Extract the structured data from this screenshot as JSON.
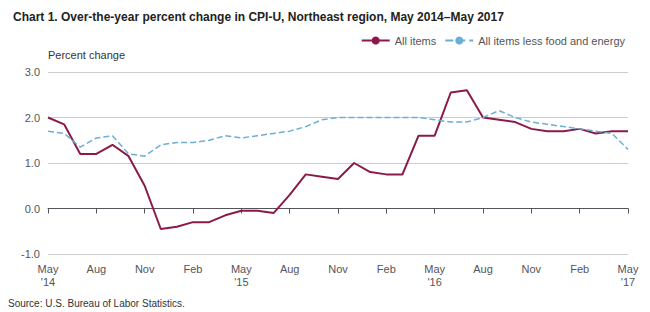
{
  "chart_data": {
    "type": "line",
    "title": "Chart 1. Over-the-year percent change in CPI-U, Northeast region, May 2014–May 2017",
    "ylabel": "Percent change",
    "annotations": [
      "Source: U.S. Bureau of Labor Statistics."
    ],
    "categories": [
      "May\n'14",
      null,
      null,
      "Aug",
      null,
      null,
      "Nov",
      null,
      null,
      "Feb",
      null,
      null,
      "May\n'15",
      null,
      null,
      "Aug",
      null,
      null,
      "Nov",
      null,
      null,
      "Feb",
      null,
      null,
      "May\n'16",
      null,
      null,
      "Aug",
      null,
      null,
      "Nov",
      null,
      null,
      "Feb",
      null,
      null,
      "May\n'17"
    ],
    "series": [
      {
        "name": "All items",
        "color": "#8B1A4A",
        "line_style": "solid",
        "values": [
          2.0,
          1.85,
          1.2,
          1.2,
          1.4,
          1.15,
          0.5,
          -0.45,
          -0.4,
          -0.3,
          -0.3,
          -0.15,
          -0.05,
          -0.05,
          -0.1,
          0.3,
          0.75,
          0.7,
          0.65,
          1.0,
          0.8,
          0.75,
          0.75,
          1.6,
          1.6,
          2.55,
          2.6,
          2.0,
          1.95,
          1.9,
          1.75,
          1.7,
          1.7,
          1.75,
          1.65,
          1.7,
          1.7
        ]
      },
      {
        "name": "All items less food and energy",
        "color": "#6BAED6",
        "line_style": "dashed",
        "values": [
          1.7,
          1.65,
          1.35,
          1.55,
          1.6,
          1.2,
          1.15,
          1.4,
          1.45,
          1.45,
          1.5,
          1.6,
          1.55,
          1.6,
          1.65,
          1.7,
          1.8,
          1.95,
          2.0,
          2.0,
          2.0,
          2.0,
          2.0,
          2.0,
          1.95,
          1.9,
          1.9,
          2.0,
          2.15,
          2.0,
          1.9,
          1.85,
          1.8,
          1.75,
          1.7,
          1.65,
          1.3
        ]
      }
    ],
    "ylim": [
      -1.0,
      3.0
    ],
    "yticks": [
      {
        "value": -1.0,
        "label": "-1.0"
      },
      {
        "value": 0.0,
        "label": "0.0"
      },
      {
        "value": 1.0,
        "label": "1.0"
      },
      {
        "value": 2.0,
        "label": "2.0"
      },
      {
        "value": 3.0,
        "label": "3.0"
      }
    ],
    "grid": true,
    "legend": "upper right"
  }
}
